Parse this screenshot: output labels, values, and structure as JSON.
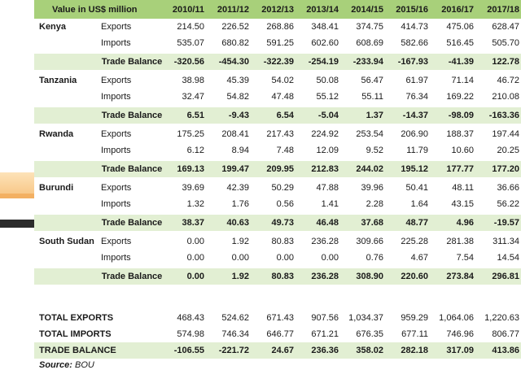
{
  "header": {
    "title": "Value in US$ million",
    "years": [
      "2010/11",
      "2011/12",
      "2012/13",
      "2013/14",
      "2014/15",
      "2015/16",
      "2016/17",
      "2017/18"
    ]
  },
  "countries": [
    {
      "name": "Kenya",
      "exports_label": "Exports",
      "exports": [
        "214.50",
        "226.52",
        "268.86",
        "348.41",
        "374.75",
        "414.73",
        "475.06",
        "628.47"
      ],
      "imports_label": "Imports",
      "imports": [
        "535.07",
        "680.82",
        "591.25",
        "602.60",
        "608.69",
        "582.66",
        "516.45",
        "505.70"
      ],
      "balance_label": "Trade Balance",
      "balance": [
        "-320.56",
        "-454.30",
        "-322.39",
        "-254.19",
        "-233.94",
        "-167.93",
        "-41.39",
        "122.78"
      ]
    },
    {
      "name": "Tanzania",
      "exports_label": "Exports",
      "exports": [
        "38.98",
        "45.39",
        "54.02",
        "50.08",
        "56.47",
        "61.97",
        "71.14",
        "46.72"
      ],
      "imports_label": "Imports",
      "imports": [
        "32.47",
        "54.82",
        "47.48",
        "55.12",
        "55.11",
        "76.34",
        "169.22",
        "210.08"
      ],
      "balance_label": "Trade Balance",
      "balance": [
        "6.51",
        "-9.43",
        "6.54",
        "-5.04",
        "1.37",
        "-14.37",
        "-98.09",
        "-163.36"
      ]
    },
    {
      "name": "Rwanda",
      "exports_label": "Exports",
      "exports": [
        "175.25",
        "208.41",
        "217.43",
        "224.92",
        "253.54",
        "206.90",
        "188.37",
        "197.44"
      ],
      "imports_label": "Imports",
      "imports": [
        "6.12",
        "8.94",
        "7.48",
        "12.09",
        "9.52",
        "11.79",
        "10.60",
        "20.25"
      ],
      "balance_label": "Trade Balance",
      "balance": [
        "169.13",
        "199.47",
        "209.95",
        "212.83",
        "244.02",
        "195.12",
        "177.77",
        "177.20"
      ]
    },
    {
      "name": "Burundi",
      "exports_label": "Exports",
      "exports": [
        "39.69",
        "42.39",
        "50.29",
        "47.88",
        "39.96",
        "50.41",
        "48.11",
        "36.66"
      ],
      "imports_label": "Imports",
      "imports": [
        "1.32",
        "1.76",
        "0.56",
        "1.41",
        "2.28",
        "1.64",
        "43.15",
        "56.22"
      ],
      "balance_label": "Trade Balance",
      "balance": [
        "38.37",
        "40.63",
        "49.73",
        "46.48",
        "37.68",
        "48.77",
        "4.96",
        "-19.57"
      ]
    },
    {
      "name": "South Sudan",
      "exports_label": "Exports",
      "exports": [
        "0.00",
        "1.92",
        "80.83",
        "236.28",
        "309.66",
        "225.28",
        "281.38",
        "311.34"
      ],
      "imports_label": "Imports",
      "imports": [
        "0.00",
        "0.00",
        "0.00",
        "0.00",
        "0.76",
        "4.67",
        "7.54",
        "14.54"
      ],
      "balance_label": "Trade Balance",
      "balance": [
        "0.00",
        "1.92",
        "80.83",
        "236.28",
        "308.90",
        "220.60",
        "273.84",
        "296.81"
      ]
    }
  ],
  "totals": [
    {
      "label": "TOTAL EXPORTS",
      "values": [
        "468.43",
        "524.62",
        "671.43",
        "907.56",
        "1,034.37",
        "959.29",
        "1,064.06",
        "1,220.63"
      ]
    },
    {
      "label": "TOTAL IMPORTS",
      "values": [
        "574.98",
        "746.34",
        "646.77",
        "671.21",
        "676.35",
        "677.11",
        "746.96",
        "806.77"
      ]
    },
    {
      "label": "TRADE BALANCE",
      "values": [
        "-106.55",
        "-221.72",
        "24.67",
        "236.36",
        "358.02",
        "282.18",
        "317.09",
        "413.86"
      ]
    }
  ],
  "source": {
    "label": "Source:",
    "value": "BOU"
  }
}
